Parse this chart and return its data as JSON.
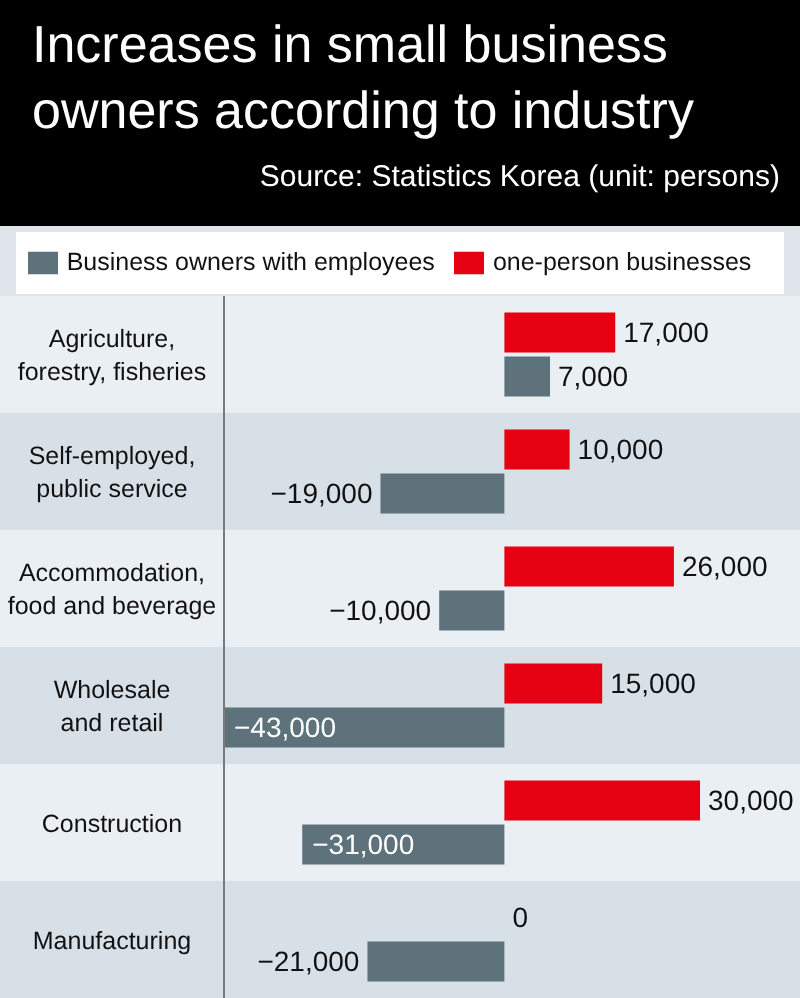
{
  "chart_data": {
    "type": "bar",
    "orientation": "horizontal",
    "title": "Increases in small business owners according to industry",
    "annotations": [
      "Source: Statistics Korea (unit: persons)"
    ],
    "categories": [
      "Agriculture, forestry, fisheries",
      "Self-employed, public service",
      "Accommodation, food and beverage",
      "Wholesale and retail",
      "Construction",
      "Manufacturing"
    ],
    "series": [
      {
        "name": "Business owners with employees",
        "color": "#5e727c",
        "values": [
          7000,
          -19000,
          -10000,
          -43000,
          -31000,
          -21000
        ],
        "value_labels": [
          "7,000",
          "−19,000",
          "−10,000",
          "−43,000",
          "−31,000",
          "−21,000"
        ]
      },
      {
        "name": "one-person businesses",
        "color": "#e50012",
        "values": [
          17000,
          10000,
          26000,
          15000,
          30000,
          0
        ],
        "value_labels": [
          "17,000",
          "10,000",
          "26,000",
          "15,000",
          "30,000",
          "0"
        ]
      }
    ],
    "legend": "top",
    "tick_labels": "y"
  }
}
